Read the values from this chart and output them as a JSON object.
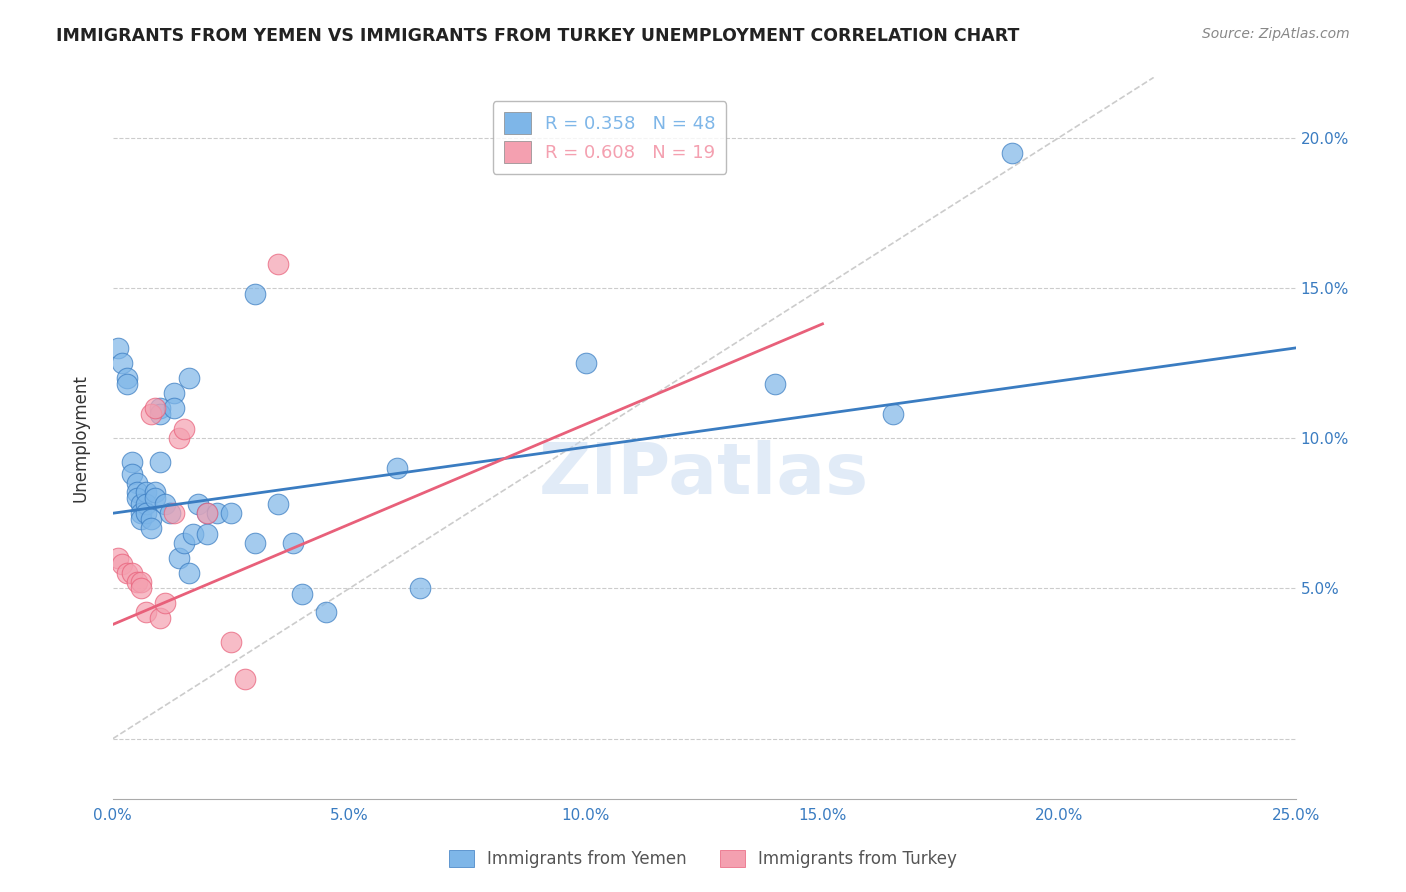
{
  "title": "IMMIGRANTS FROM YEMEN VS IMMIGRANTS FROM TURKEY UNEMPLOYMENT CORRELATION CHART",
  "source": "Source: ZipAtlas.com",
  "xlabel_bottom": "",
  "ylabel": "Unemployment",
  "xlim": [
    0.0,
    0.25
  ],
  "ylim": [
    -0.02,
    0.22
  ],
  "xticks": [
    0.0,
    0.05,
    0.1,
    0.15,
    0.2,
    0.25
  ],
  "yticks": [
    0.0,
    0.05,
    0.1,
    0.15,
    0.2
  ],
  "ytick_labels": [
    "",
    "5.0%",
    "10.0%",
    "15.0%",
    "20.0%"
  ],
  "xtick_labels": [
    "0.0%",
    "5.0%",
    "10.0%",
    "15.0%",
    "20.0%",
    "25.0%"
  ],
  "legend_entries": [
    {
      "label": "R = 0.358   N = 48",
      "color": "#7EB6E8"
    },
    {
      "label": "R = 0.608   N = 19",
      "color": "#F4A0B0"
    }
  ],
  "watermark": "ZIPatlas",
  "blue_color": "#7EB6E8",
  "pink_color": "#F4A0B0",
  "blue_line_color": "#3A7CC1",
  "pink_line_color": "#E8607A",
  "diagonal_line_color": "#CCCCCC",
  "yemen_points": [
    [
      0.001,
      0.13
    ],
    [
      0.002,
      0.125
    ],
    [
      0.003,
      0.12
    ],
    [
      0.003,
      0.118
    ],
    [
      0.004,
      0.092
    ],
    [
      0.004,
      0.088
    ],
    [
      0.005,
      0.085
    ],
    [
      0.005,
      0.082
    ],
    [
      0.005,
      0.08
    ],
    [
      0.006,
      0.078
    ],
    [
      0.006,
      0.075
    ],
    [
      0.006,
      0.073
    ],
    [
      0.007,
      0.082
    ],
    [
      0.007,
      0.078
    ],
    [
      0.007,
      0.075
    ],
    [
      0.008,
      0.073
    ],
    [
      0.008,
      0.07
    ],
    [
      0.009,
      0.082
    ],
    [
      0.009,
      0.08
    ],
    [
      0.01,
      0.11
    ],
    [
      0.01,
      0.108
    ],
    [
      0.01,
      0.092
    ],
    [
      0.011,
      0.078
    ],
    [
      0.012,
      0.075
    ],
    [
      0.013,
      0.115
    ],
    [
      0.013,
      0.11
    ],
    [
      0.014,
      0.06
    ],
    [
      0.015,
      0.065
    ],
    [
      0.016,
      0.12
    ],
    [
      0.016,
      0.055
    ],
    [
      0.017,
      0.068
    ],
    [
      0.018,
      0.078
    ],
    [
      0.02,
      0.075
    ],
    [
      0.02,
      0.068
    ],
    [
      0.022,
      0.075
    ],
    [
      0.025,
      0.075
    ],
    [
      0.03,
      0.148
    ],
    [
      0.03,
      0.065
    ],
    [
      0.035,
      0.078
    ],
    [
      0.038,
      0.065
    ],
    [
      0.04,
      0.048
    ],
    [
      0.045,
      0.042
    ],
    [
      0.06,
      0.09
    ],
    [
      0.065,
      0.05
    ],
    [
      0.1,
      0.125
    ],
    [
      0.14,
      0.118
    ],
    [
      0.165,
      0.108
    ],
    [
      0.19,
      0.195
    ]
  ],
  "turkey_points": [
    [
      0.001,
      0.06
    ],
    [
      0.002,
      0.058
    ],
    [
      0.003,
      0.055
    ],
    [
      0.004,
      0.055
    ],
    [
      0.005,
      0.052
    ],
    [
      0.006,
      0.052
    ],
    [
      0.006,
      0.05
    ],
    [
      0.007,
      0.042
    ],
    [
      0.008,
      0.108
    ],
    [
      0.009,
      0.11
    ],
    [
      0.01,
      0.04
    ],
    [
      0.011,
      0.045
    ],
    [
      0.013,
      0.075
    ],
    [
      0.014,
      0.1
    ],
    [
      0.015,
      0.103
    ],
    [
      0.02,
      0.075
    ],
    [
      0.025,
      0.032
    ],
    [
      0.028,
      0.02
    ],
    [
      0.035,
      0.158
    ]
  ],
  "blue_line": {
    "x0": 0.0,
    "y0": 0.075,
    "x1": 0.25,
    "y1": 0.13
  },
  "pink_line": {
    "x0": 0.0,
    "y0": 0.038,
    "x1": 0.15,
    "y1": 0.138
  },
  "diag_line": {
    "x0": 0.0,
    "y0": 0.0,
    "x1": 0.22,
    "y1": 0.22
  }
}
